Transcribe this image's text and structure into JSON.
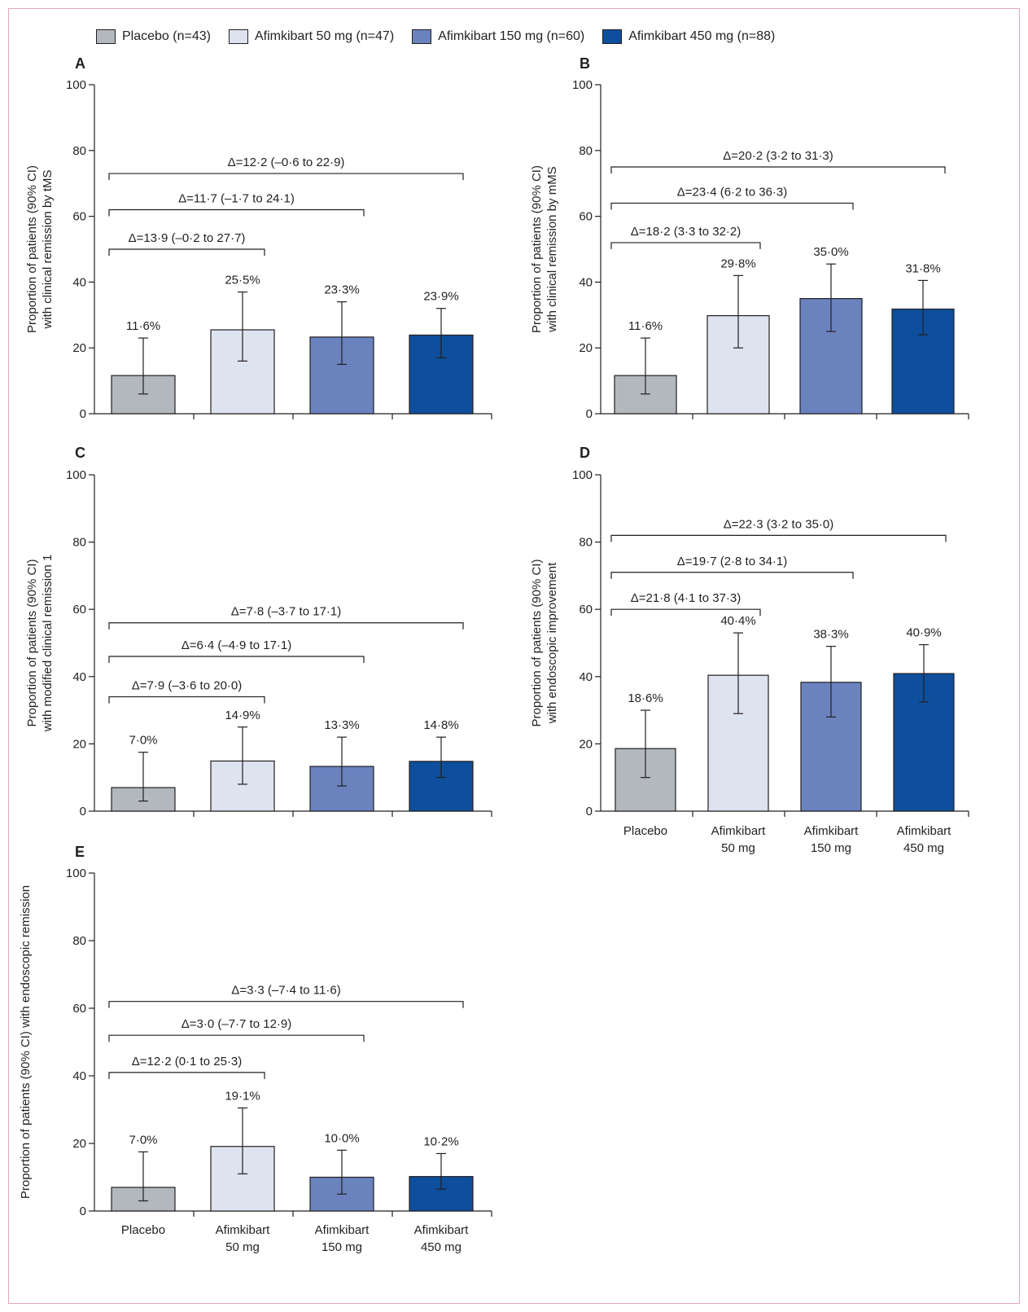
{
  "legend": [
    {
      "label": "Placebo (n=43)",
      "color": "#b2b8bd"
    },
    {
      "label": "Afimkibart 50 mg (n=47)",
      "color": "#dde3ef"
    },
    {
      "label": "Afimkibart 150 mg (n=60)",
      "color": "#6a83bf"
    },
    {
      "label": "Afimkibart 450 mg (n=88)",
      "color": "#0d4f9c"
    }
  ],
  "chart_data": [
    {
      "panel": "A",
      "type": "bar",
      "ylabel": [
        "Proportion of patients (90% CI)",
        "with clinical remission by tMS"
      ],
      "ylim": [
        0,
        100
      ],
      "yticks": [
        0,
        20,
        40,
        60,
        80,
        100
      ],
      "categories": [
        "Placebo",
        "Afimkibart 50 mg",
        "Afimkibart 150 mg",
        "Afimkibart 450 mg"
      ],
      "values": [
        11.6,
        25.5,
        23.3,
        23.9
      ],
      "ci_low": [
        6,
        16,
        15,
        17
      ],
      "ci_high": [
        23,
        37,
        34,
        32
      ],
      "value_labels": [
        "11·6%",
        "25·5%",
        "23·3%",
        "23·9%"
      ],
      "comparisons": [
        {
          "to": 1,
          "y": 50,
          "label": "Δ=13·9 (–0·2 to 27·7)"
        },
        {
          "to": 2,
          "y": 62,
          "label": "Δ=11·7 (–1·7 to 24·1)"
        },
        {
          "to": 3,
          "y": 73,
          "label": "Δ=12·2 (–0·6 to 22·9)"
        }
      ],
      "show_xlabels": false
    },
    {
      "panel": "B",
      "type": "bar",
      "ylabel": [
        "Proportion of patients (90% CI)",
        "with clinical remission by mMS"
      ],
      "ylim": [
        0,
        100
      ],
      "yticks": [
        0,
        20,
        40,
        60,
        80,
        100
      ],
      "categories": [
        "Placebo",
        "Afimkibart 50 mg",
        "Afimkibart 150 mg",
        "Afimkibart 450 mg"
      ],
      "values": [
        11.6,
        29.8,
        35.0,
        31.8
      ],
      "ci_low": [
        6,
        20,
        25,
        24
      ],
      "ci_high": [
        23,
        42,
        45.5,
        40.5
      ],
      "value_labels": [
        "11·6%",
        "29·8%",
        "35·0%",
        "31·8%"
      ],
      "comparisons": [
        {
          "to": 1,
          "y": 52,
          "label": "Δ=18·2 (3·3 to 32·2)"
        },
        {
          "to": 2,
          "y": 64,
          "label": "Δ=23·4 (6·2 to 36·3)"
        },
        {
          "to": 3,
          "y": 75,
          "label": "Δ=20·2 (3·2 to 31·3)"
        }
      ],
      "show_xlabels": false
    },
    {
      "panel": "C",
      "type": "bar",
      "ylabel": [
        "Proportion of patients (90% CI)",
        "with modified clinical remission 1"
      ],
      "ylim": [
        0,
        100
      ],
      "yticks": [
        0,
        20,
        40,
        60,
        80,
        100
      ],
      "categories": [
        "Placebo",
        "Afimkibart 50 mg",
        "Afimkibart 150 mg",
        "Afimkibart 450 mg"
      ],
      "values": [
        7.0,
        14.9,
        13.3,
        14.8
      ],
      "ci_low": [
        3,
        8,
        7.5,
        10
      ],
      "ci_high": [
        17.5,
        25,
        22,
        22
      ],
      "value_labels": [
        "7·0%",
        "14·9%",
        "13·3%",
        "14·8%"
      ],
      "comparisons": [
        {
          "to": 1,
          "y": 34,
          "label": "Δ=7·9 (–3·6 to 20·0)"
        },
        {
          "to": 2,
          "y": 46,
          "label": "Δ=6·4 (–4·9 to 17·1)"
        },
        {
          "to": 3,
          "y": 56,
          "label": "Δ=7·8 (–3·7 to 17·1)"
        }
      ],
      "show_xlabels": false
    },
    {
      "panel": "D",
      "type": "bar",
      "ylabel": [
        "Proportion of patients (90% CI)",
        "with endoscopic improvement"
      ],
      "ylim": [
        0,
        100
      ],
      "yticks": [
        0,
        20,
        40,
        60,
        80,
        100
      ],
      "categories": [
        "Placebo",
        "Afimkibart 50 mg",
        "Afimkibart 150 mg",
        "Afimkibart 450 mg"
      ],
      "values": [
        18.6,
        40.4,
        38.3,
        40.9
      ],
      "ci_low": [
        10,
        29,
        28,
        32.5
      ],
      "ci_high": [
        30,
        53,
        49,
        49.5
      ],
      "value_labels": [
        "18·6%",
        "40·4%",
        "38·3%",
        "40·9%"
      ],
      "comparisons": [
        {
          "to": 1,
          "y": 60,
          "label": "Δ=21·8 (4·1 to 37·3)"
        },
        {
          "to": 2,
          "y": 71,
          "label": "Δ=19·7 (2·8 to 34·1)"
        },
        {
          "to": 3,
          "y": 82,
          "label": "Δ=22·3 (3·2 to 35·0)"
        }
      ],
      "show_xlabels": true,
      "xlabels": [
        [
          "Placebo"
        ],
        [
          "Afimkibart",
          "50 mg"
        ],
        [
          "Afimkibart",
          "150 mg"
        ],
        [
          "Afimkibart",
          "450 mg"
        ]
      ]
    },
    {
      "panel": "E",
      "type": "bar",
      "ylabel": [
        "Proportion of patients (90% CI) with endoscopic remission"
      ],
      "ylim": [
        0,
        100
      ],
      "yticks": [
        0,
        20,
        40,
        60,
        80,
        100
      ],
      "categories": [
        "Placebo",
        "Afimkibart 50 mg",
        "Afimkibart 150 mg",
        "Afimkibart 450 mg"
      ],
      "values": [
        7.0,
        19.1,
        10.0,
        10.2
      ],
      "ci_low": [
        3,
        11,
        5,
        6.5
      ],
      "ci_high": [
        17.5,
        30.5,
        18,
        17
      ],
      "value_labels": [
        "7·0%",
        "19·1%",
        "10·0%",
        "10·2%"
      ],
      "comparisons": [
        {
          "to": 1,
          "y": 41,
          "label": "Δ=12·2 (0·1 to 25·3)"
        },
        {
          "to": 2,
          "y": 52,
          "label": "Δ=3·0 (–7·7 to 12·9)"
        },
        {
          "to": 3,
          "y": 62,
          "label": "Δ=3·3 (–7·4 to 11·6)"
        }
      ],
      "show_xlabels": true,
      "xlabels": [
        [
          "Placebo"
        ],
        [
          "Afimkibart",
          "50 mg"
        ],
        [
          "Afimkibart",
          "150 mg"
        ],
        [
          "Afimkibart",
          "450 mg"
        ]
      ]
    }
  ]
}
